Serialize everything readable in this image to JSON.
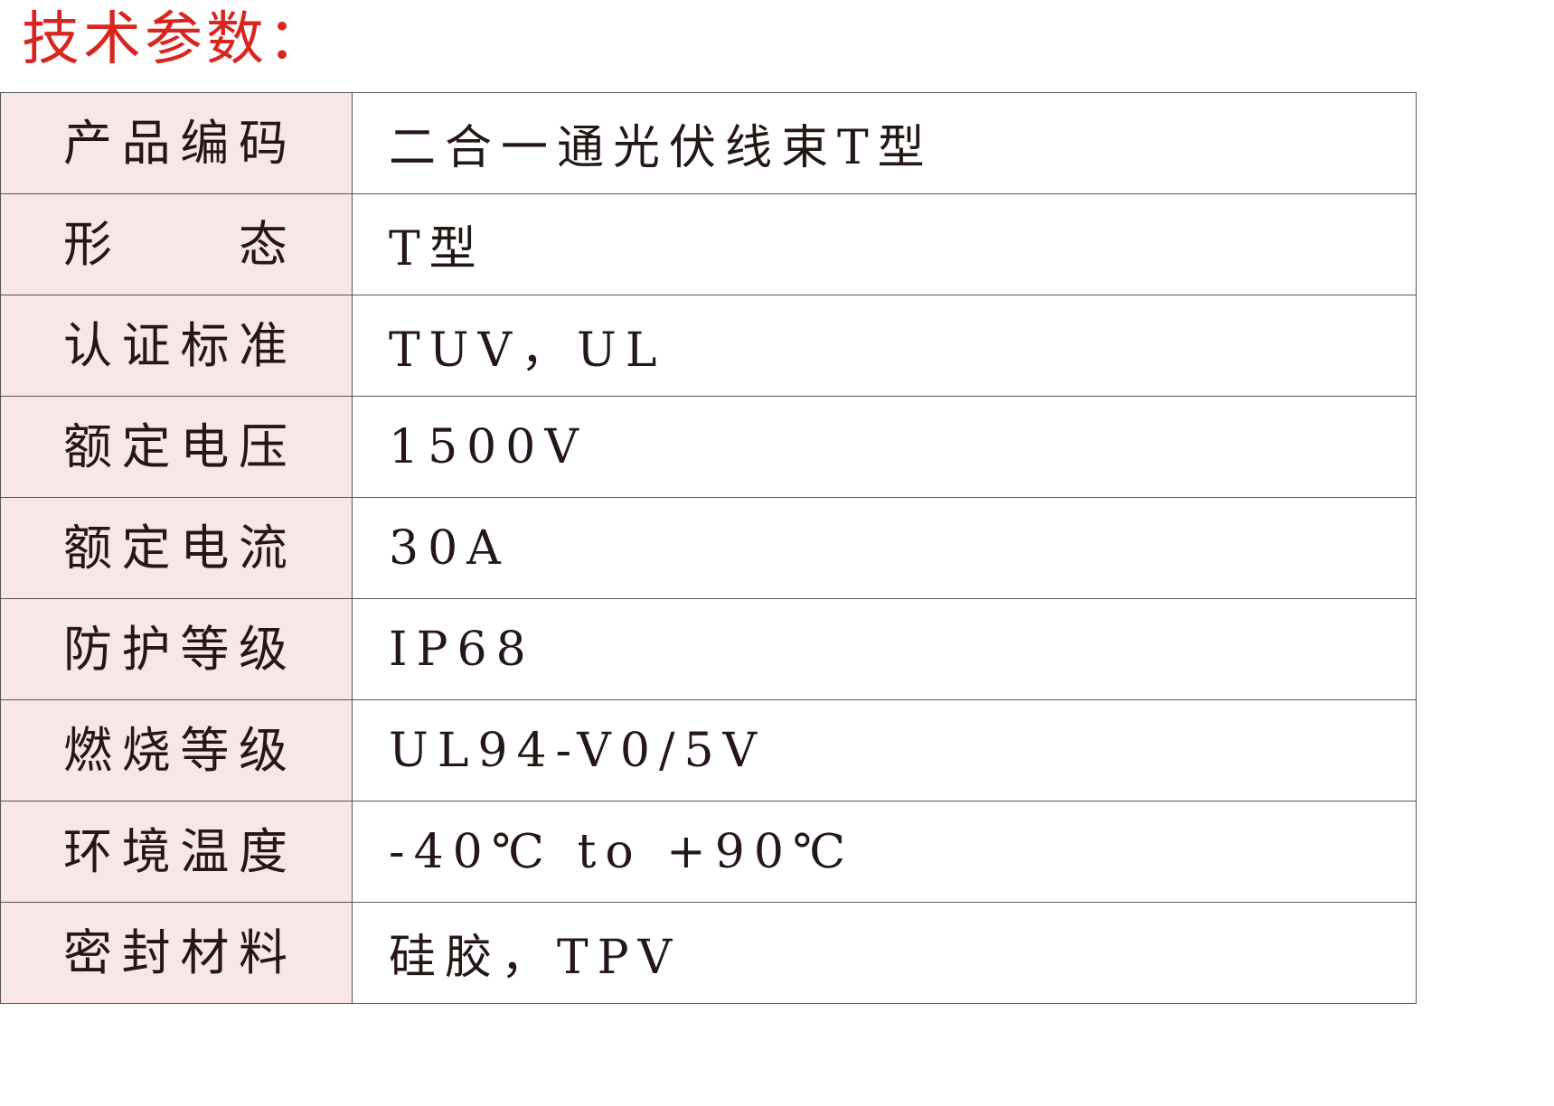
{
  "title": "技术参数：",
  "colors": {
    "title": "#d8251f",
    "label_background": "#f8e6e8",
    "border": "#555555",
    "text": "#231815"
  },
  "rows": [
    {
      "label": "产品编码",
      "value": "二合一通光伏线束T型"
    },
    {
      "label": "形态",
      "value": "T型"
    },
    {
      "label": "认证标准",
      "value": "TUV，UL"
    },
    {
      "label": "额定电压",
      "value": "1500V"
    },
    {
      "label": "额定电流",
      "value": "30A"
    },
    {
      "label": "防护等级",
      "value": "IP68"
    },
    {
      "label": "燃烧等级",
      "value": "UL94-V0/5V"
    },
    {
      "label": "环境温度",
      "value": "-40℃ to +90℃"
    },
    {
      "label": "密封材料",
      "value": "硅胶，TPV"
    }
  ]
}
